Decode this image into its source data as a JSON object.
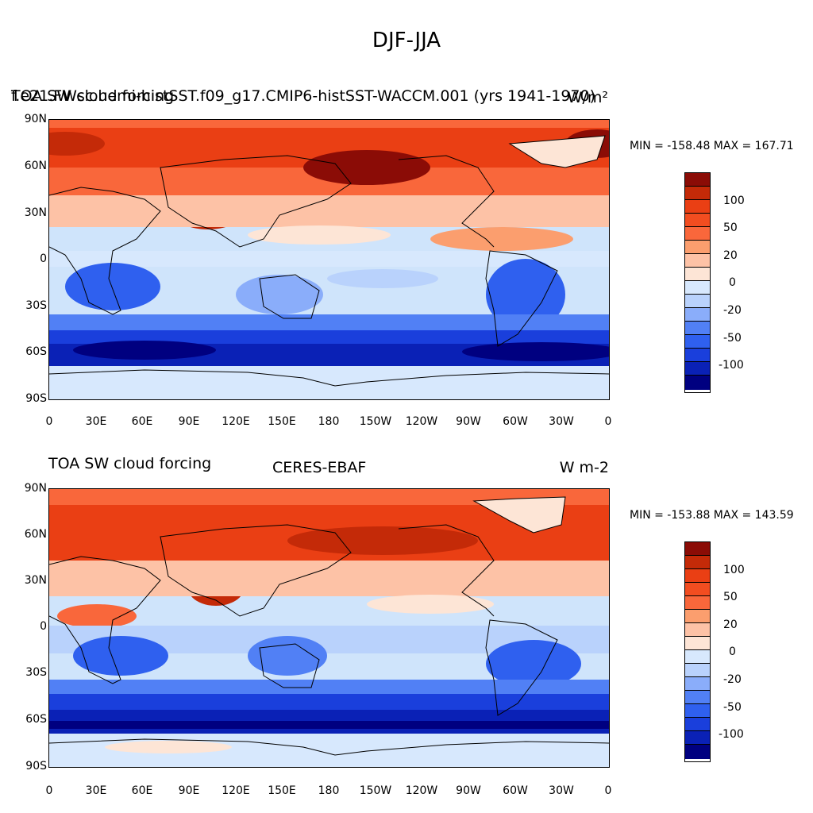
{
  "title": "DJF-JJA",
  "colors": {
    "ocean": "#cfe4fb",
    "land_line": "#000000",
    "palette": [
      "#000080",
      "#0a21b6",
      "#1a3fdc",
      "#2f60ef",
      "#5180f5",
      "#8aadfa",
      "#b9d2fc",
      "#d7e8fd",
      "#fde5d6",
      "#fdc2a6",
      "#fb9e6e",
      "#f9673b",
      "#ea3f14",
      "#c42a08",
      "#8b0c06"
    ]
  },
  "panels": [
    {
      "left_label": "f.e21.FWsc.hemi-histSST.f09_g17.CMIP6-histSST-WACCM.001 (yrs 1941-1970)",
      "center_label": "TOA SW cloud forcing",
      "right_label": "W/m²",
      "min_max": "MIN = -158.48 MAX = 167.71"
    },
    {
      "left_label": "TOA SW cloud forcing",
      "center_label": "CERES-EBAF",
      "right_label": "W m-2",
      "min_max": "MIN = -153.88 MAX = 143.59"
    }
  ],
  "lat_ticks": [
    "90N",
    "60N",
    "30N",
    "0",
    "30S",
    "60S",
    "90S"
  ],
  "lon_ticks": [
    "0",
    "30E",
    "60E",
    "90E",
    "120E",
    "150E",
    "180",
    "150W",
    "120W",
    "90W",
    "60W",
    "30W",
    "0"
  ],
  "colorbar_ticks": [
    "100",
    "50",
    "20",
    "0",
    "-20",
    "-50",
    "-100"
  ]
}
